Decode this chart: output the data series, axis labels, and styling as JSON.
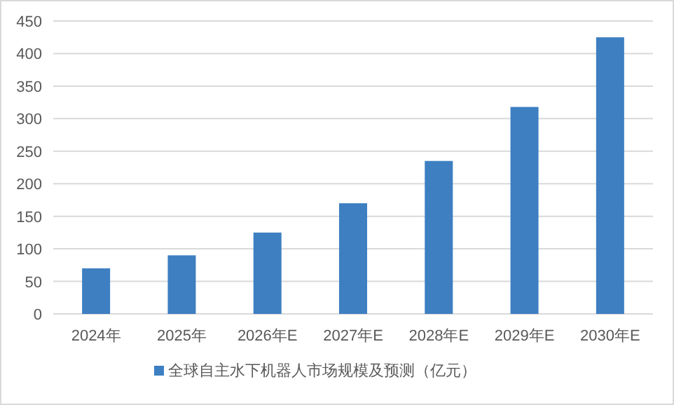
{
  "chart_data": {
    "type": "bar",
    "categories": [
      "2024年",
      "2025年",
      "2026年E",
      "2027年E",
      "2028年E",
      "2029年E",
      "2030年E"
    ],
    "series": [
      {
        "name": "全球自主水下机器人市场规模及预测（亿元）",
        "color": "#3d7fc1",
        "values": [
          70,
          90,
          125,
          170,
          235,
          318,
          425
        ]
      }
    ],
    "ylim": [
      0,
      450
    ],
    "yticks": [
      0,
      50,
      100,
      150,
      200,
      250,
      300,
      350,
      400,
      450
    ],
    "grid": "y",
    "legend": "bottom"
  }
}
